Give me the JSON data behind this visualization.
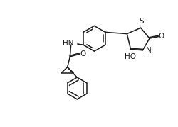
{
  "bg_color": "#ffffff",
  "line_color": "#1a1a1a",
  "text_color": "#1a1a1a",
  "figsize": [
    2.5,
    1.79
  ],
  "dpi": 100,
  "xlim": [
    0,
    10
  ],
  "ylim": [
    0,
    7.16
  ]
}
